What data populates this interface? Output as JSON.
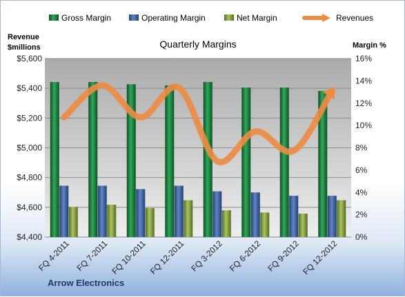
{
  "chart_data": {
    "type": "bar+line",
    "title": "Quarterly Margins",
    "footer": "Arrow Electronics",
    "categories": [
      "FQ 4-2011",
      "FQ 7-2011",
      "FQ 10-2011",
      "FQ 12-2011",
      "FQ 3-2012",
      "FQ 6-2012",
      "FQ 9-2012",
      "FQ 12-2012"
    ],
    "y_left": {
      "label_line1": "Revenue",
      "label_line2": "$millions",
      "range": [
        4400,
        5600
      ],
      "ticks": [
        4400,
        4600,
        4800,
        5000,
        5200,
        5400,
        5600
      ],
      "tick_labels": [
        "$4,400",
        "$4,600",
        "$4,800",
        "$5,000",
        "$5,200",
        "$5,400",
        "$5,600"
      ]
    },
    "y_right": {
      "label": "Margin %",
      "range": [
        0,
        16
      ],
      "ticks": [
        0,
        2,
        4,
        6,
        8,
        10,
        12,
        14,
        16
      ],
      "tick_labels": [
        "0%",
        "2%",
        "4%",
        "6%",
        "8%",
        "10%",
        "12%",
        "14%",
        "16%"
      ]
    },
    "series": [
      {
        "name": "Gross Margin",
        "axis": "right",
        "kind": "bar",
        "color": "#1f8a46",
        "values": [
          13.9,
          13.9,
          13.7,
          13.6,
          13.9,
          13.4,
          13.4,
          13.1
        ]
      },
      {
        "name": "Operating Margin",
        "axis": "right",
        "kind": "bar",
        "color": "#4a6fae",
        "values": [
          4.6,
          4.6,
          4.3,
          4.6,
          4.1,
          4.0,
          3.7,
          3.7
        ]
      },
      {
        "name": "Net Margin",
        "axis": "right",
        "kind": "bar",
        "color": "#8fac4a",
        "values": [
          2.7,
          2.9,
          2.6,
          3.3,
          2.4,
          2.2,
          2.1,
          3.3
        ]
      },
      {
        "name": "Revenues",
        "axis": "left",
        "kind": "line",
        "color": "#ec8c43",
        "values": [
          5205,
          5420,
          5205,
          5405,
          4910,
          5110,
          4980,
          5385
        ]
      }
    ],
    "grid": true,
    "legend_position": "top"
  }
}
